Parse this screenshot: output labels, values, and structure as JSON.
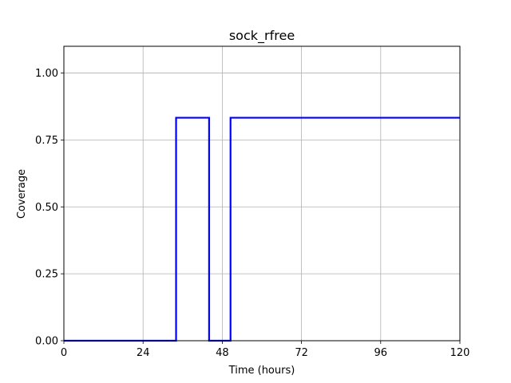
{
  "chart_data": {
    "type": "line",
    "title": "sock_rfree",
    "xlabel": "Time (hours)",
    "ylabel": "Coverage",
    "xlim": [
      0,
      120
    ],
    "ylim": [
      0,
      1.1
    ],
    "xticks": [
      0,
      24,
      48,
      72,
      96,
      120
    ],
    "xtick_labels": [
      "0",
      "24",
      "48",
      "72",
      "96",
      "120"
    ],
    "yticks": [
      0,
      0.25,
      0.5,
      0.75,
      1.0
    ],
    "ytick_labels": [
      "0.00",
      "0.25",
      "0.50",
      "0.75",
      "1.00"
    ],
    "grid": true,
    "series": [
      {
        "color": "#0000ff",
        "x": [
          0,
          34,
          34,
          44,
          44,
          50.5,
          50.5,
          120
        ],
        "y": [
          0,
          0,
          0.833,
          0.833,
          0,
          0,
          0.833,
          0.833
        ]
      }
    ]
  }
}
